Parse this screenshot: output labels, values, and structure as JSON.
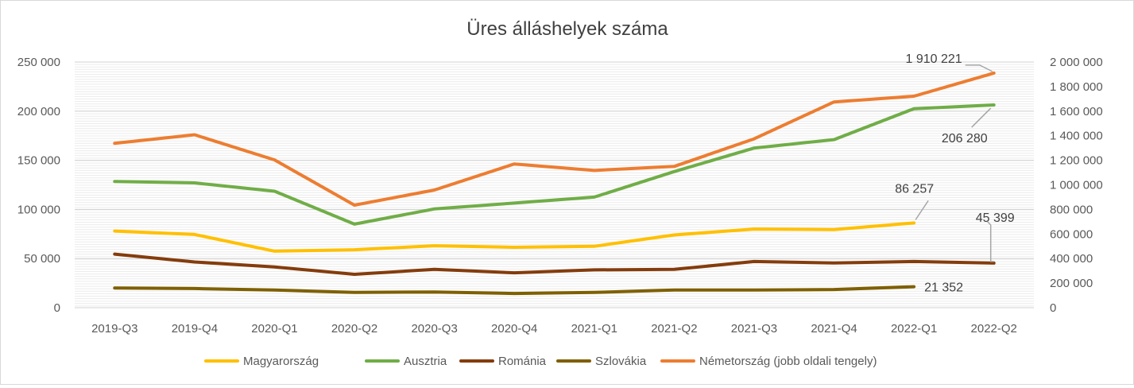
{
  "chart_data": {
    "type": "line",
    "title": "Üres álláshelyek száma",
    "categories": [
      "2019-Q3",
      "2019-Q4",
      "2020-Q1",
      "2020-Q2",
      "2020-Q3",
      "2020-Q4",
      "2021-Q1",
      "2021-Q2",
      "2021-Q3",
      "2021-Q4",
      "2022-Q1",
      "2022-Q2"
    ],
    "y_left": {
      "min": 0,
      "max": 250000,
      "ticks": [
        0,
        50000,
        100000,
        150000,
        200000,
        250000
      ],
      "tick_labels": [
        "0",
        "50 000",
        "100 000",
        "150 000",
        "200 000",
        "250 000"
      ]
    },
    "y_right": {
      "min": 0,
      "max": 2000000,
      "ticks": [
        0,
        200000,
        400000,
        600000,
        800000,
        1000000,
        1200000,
        1400000,
        1600000,
        1800000,
        2000000
      ],
      "tick_labels": [
        "0",
        "200 000",
        "400 000",
        "600 000",
        "800 000",
        "1 000 000",
        "1 200 000",
        "1 400 000",
        "1 600 000",
        "1 800 000",
        "2 000 000"
      ]
    },
    "grid": "horizontal",
    "legend_position": "bottom",
    "series": [
      {
        "name": "Magyarország",
        "axis": "left",
        "color": "#FFC000",
        "values": [
          78000,
          74500,
          57500,
          59000,
          63000,
          61500,
          62500,
          74000,
          80000,
          79500,
          86257,
          null
        ]
      },
      {
        "name": "Ausztria",
        "axis": "left",
        "color": "#70AD47",
        "values": [
          128500,
          127000,
          118500,
          85000,
          100500,
          106500,
          112500,
          138500,
          162500,
          171000,
          202500,
          206280
        ]
      },
      {
        "name": "Románia",
        "axis": "left",
        "color": "#843C0C",
        "values": [
          54500,
          46500,
          41500,
          34000,
          39000,
          35500,
          38500,
          39000,
          47000,
          45500,
          47000,
          45399
        ]
      },
      {
        "name": "Szlovákia",
        "axis": "left",
        "color": "#7F6000",
        "values": [
          20000,
          19500,
          18000,
          15500,
          16000,
          14500,
          15500,
          18000,
          18000,
          18500,
          21352,
          null
        ]
      },
      {
        "name": "Németország (jobb oldali tengely)",
        "axis": "right",
        "color": "#ED7D31",
        "values": [
          1338000,
          1408000,
          1203000,
          835000,
          958000,
          1170000,
          1117000,
          1150000,
          1375000,
          1675000,
          1722000,
          1910221
        ]
      }
    ],
    "data_labels": [
      {
        "series": 4,
        "index": 11,
        "text": "1 910 221"
      },
      {
        "series": 1,
        "index": 11,
        "text": "206 280"
      },
      {
        "series": 0,
        "index": 10,
        "text": "86 257"
      },
      {
        "series": 2,
        "index": 11,
        "text": "45 399"
      },
      {
        "series": 3,
        "index": 10,
        "text": "21 352"
      }
    ]
  }
}
